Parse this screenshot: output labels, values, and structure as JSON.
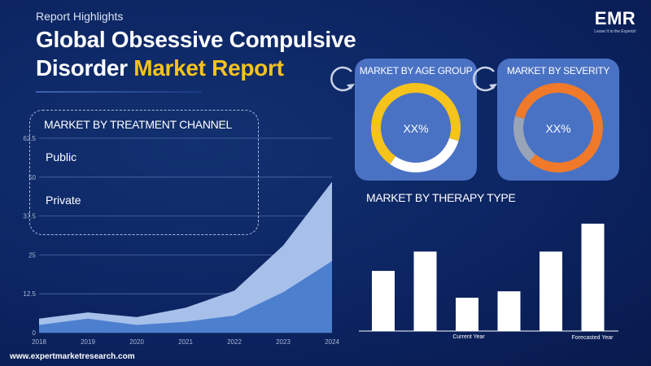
{
  "header": {
    "kicker": "Report Highlights",
    "title_line1": "Global Obsessive Compulsive",
    "title_line2_plain": "Disorder",
    "title_line2_highlight": "Market Report"
  },
  "logo": {
    "mark": "EMR",
    "tagline": "Leave It to the Experts!"
  },
  "footer": {
    "url": "www.expertmarketresearch.com"
  },
  "treatment_channel": {
    "title": "MARKET BY TREATMENT CHANNEL",
    "items": [
      "Public",
      "Private"
    ]
  },
  "age_group": {
    "title": "MARKET BY AGE GROUP",
    "value_label": "XX%"
  },
  "severity": {
    "title": "MARKET BY SEVERITY",
    "value_label": "XX%"
  },
  "therapy": {
    "title": "MARKET BY THERAPY TYPE",
    "current_label": "Current Year",
    "forecast_label": "Forecasted Year"
  },
  "colors": {
    "background": "#0c2462",
    "accent_yellow": "#f6c21c",
    "card_blue": "#4a72c4",
    "donut_age": "#f6c21c",
    "donut_severity": "#f07a2a",
    "donut_track_age": "#ffffff",
    "donut_track_severity": "#9aa4b8",
    "area_upper": "#a7c0ea",
    "area_lower": "#4d7fcf"
  },
  "chart_data": [
    {
      "type": "area",
      "x": [
        "2018",
        "2019",
        "2020",
        "2021",
        "2022",
        "2023",
        "2024"
      ],
      "yticks": [
        "0",
        "12.5",
        "25",
        "37.5",
        "50",
        "62.5"
      ],
      "ylim": [
        0,
        62.5
      ],
      "series": [
        {
          "values": [
            4.5,
            6.5,
            5,
            8,
            13.5,
            28,
            48.5
          ]
        },
        {
          "values": [
            2.5,
            4.5,
            2.5,
            3.5,
            5.5,
            13,
            23
          ]
        }
      ],
      "grid": true
    },
    {
      "type": "pie",
      "title": "MARKET BY AGE GROUP",
      "values": [
        70,
        30
      ]
    },
    {
      "type": "pie",
      "title": "MARKET BY SEVERITY",
      "values": [
        82,
        18
      ]
    },
    {
      "type": "bar",
      "title": "MARKET BY THERAPY TYPE",
      "values": [
        56,
        74,
        31,
        37,
        74,
        100
      ],
      "ylim": [
        0,
        100
      ]
    }
  ]
}
